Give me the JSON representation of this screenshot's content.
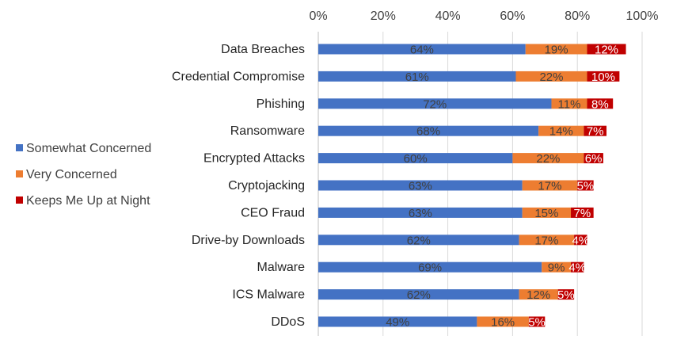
{
  "chart_data": {
    "type": "bar",
    "orientation": "horizontal",
    "stacked": true,
    "categories": [
      "Data Breaches",
      "Credential Compromise",
      "Phishing",
      "Ransomware",
      "Encrypted Attacks",
      "Cryptojacking",
      "CEO Fraud",
      "Drive-by Downloads",
      "Malware",
      "ICS Malware",
      "DDoS"
    ],
    "series": [
      {
        "name": "Somewhat Concerned",
        "color": "#4472C4",
        "values": [
          64,
          61,
          72,
          68,
          60,
          63,
          63,
          62,
          69,
          62,
          49
        ],
        "labels": [
          "64%",
          "61%",
          "72%",
          "68%",
          "60%",
          "63%",
          "63%",
          "62%",
          "69%",
          "62%",
          "49%"
        ]
      },
      {
        "name": "Very Concerned",
        "color": "#ED7D31",
        "values": [
          19,
          22,
          11,
          14,
          22,
          17,
          15,
          17,
          9,
          12,
          16
        ],
        "labels": [
          "19%",
          "22%",
          "11%",
          "14%",
          "22%",
          "17%",
          "15%",
          "17%",
          "9%",
          "12%",
          "16%"
        ]
      },
      {
        "name": "Keeps Me Up at Night",
        "color": "#C00000",
        "values": [
          12,
          10,
          8,
          7,
          6,
          5,
          7,
          4,
          4,
          5,
          5
        ],
        "labels": [
          "12%",
          "10%",
          "8%",
          "7%",
          "6%",
          "5%",
          "7%",
          "4%",
          "4%",
          "5%",
          "5%"
        ]
      }
    ],
    "xlim": [
      0,
      100
    ],
    "xticks": [
      0,
      20,
      40,
      60,
      80,
      100
    ],
    "xtick_labels": [
      "0%",
      "20%",
      "40%",
      "60%",
      "80%",
      "100%"
    ],
    "title": "",
    "xlabel": "",
    "ylabel": "",
    "grid": "vertical",
    "legend_position": "left",
    "axis_position": "top"
  }
}
